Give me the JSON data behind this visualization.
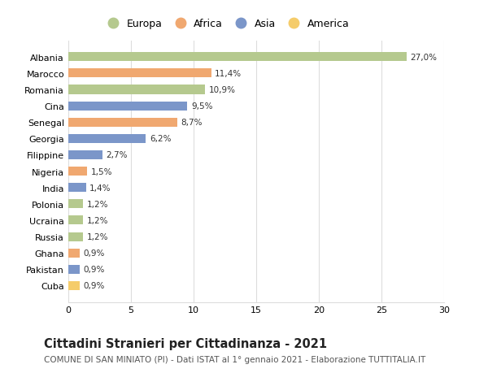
{
  "countries": [
    "Albania",
    "Marocco",
    "Romania",
    "Cina",
    "Senegal",
    "Georgia",
    "Filippine",
    "Nigeria",
    "India",
    "Polonia",
    "Ucraina",
    "Russia",
    "Ghana",
    "Pakistan",
    "Cuba"
  ],
  "values": [
    27.0,
    11.4,
    10.9,
    9.5,
    8.7,
    6.2,
    2.7,
    1.5,
    1.4,
    1.2,
    1.2,
    1.2,
    0.9,
    0.9,
    0.9
  ],
  "labels": [
    "27,0%",
    "11,4%",
    "10,9%",
    "9,5%",
    "8,7%",
    "6,2%",
    "2,7%",
    "1,5%",
    "1,4%",
    "1,2%",
    "1,2%",
    "1,2%",
    "0,9%",
    "0,9%",
    "0,9%"
  ],
  "continents": [
    "Europa",
    "Africa",
    "Europa",
    "Asia",
    "Africa",
    "Asia",
    "Asia",
    "Africa",
    "Asia",
    "Europa",
    "Europa",
    "Europa",
    "Africa",
    "Asia",
    "America"
  ],
  "continent_colors": {
    "Europa": "#b5c98e",
    "Africa": "#f0a870",
    "Asia": "#7b96c9",
    "America": "#f5cc6a"
  },
  "legend_order": [
    "Europa",
    "Africa",
    "Asia",
    "America"
  ],
  "title": "Cittadini Stranieri per Cittadinanza - 2021",
  "subtitle": "COMUNE DI SAN MINIATO (PI) - Dati ISTAT al 1° gennaio 2021 - Elaborazione TUTTITALIA.IT",
  "xlim": [
    0,
    30
  ],
  "xticks": [
    0,
    5,
    10,
    15,
    20,
    25,
    30
  ],
  "background_color": "#ffffff",
  "grid_color": "#dddddd",
  "bar_height": 0.55,
  "title_fontsize": 10.5,
  "subtitle_fontsize": 7.5,
  "label_fontsize": 7.5,
  "tick_fontsize": 8,
  "legend_fontsize": 9
}
